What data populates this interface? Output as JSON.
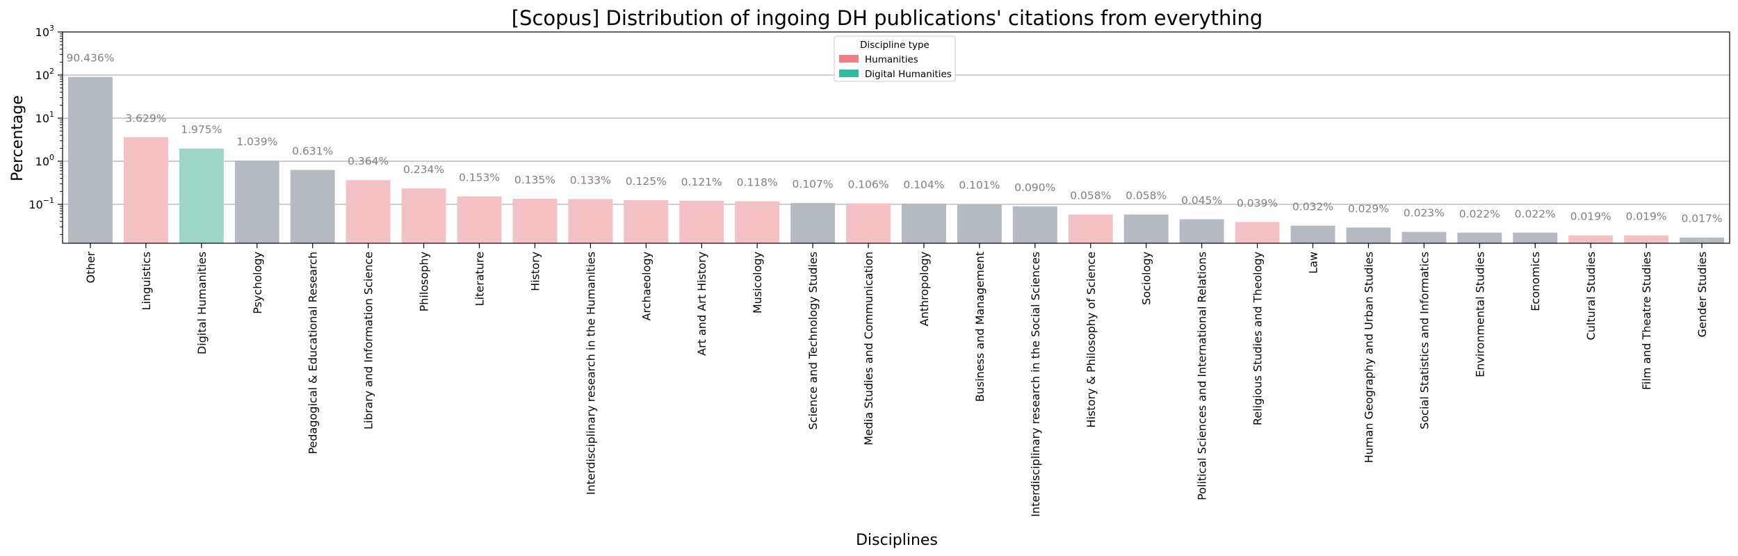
{
  "chart_data": {
    "type": "bar",
    "title": "[Scopus] Distribution of ingoing DH publications' citations from everything",
    "xlabel": "Disciplines",
    "ylabel": "Percentage",
    "yscale": "log",
    "ylim": [
      0.0125,
      1000
    ],
    "yticks": [
      {
        "value": 1000,
        "base": "10",
        "exp": "3"
      },
      {
        "value": 100,
        "base": "10",
        "exp": "2"
      },
      {
        "value": 10,
        "base": "10",
        "exp": "1"
      },
      {
        "value": 1,
        "base": "10",
        "exp": "0"
      },
      {
        "value": 0.1,
        "base": "10",
        "exp": "−1"
      }
    ],
    "grid": "horizontal",
    "legend": {
      "title": "Discipline type",
      "placement": "top-center",
      "entries": [
        {
          "label": "Humanities",
          "color": "#f07c85"
        },
        {
          "label": "Digital Humanities",
          "color": "#2fbc9c"
        }
      ]
    },
    "colors": {
      "other": "#b5bbc0",
      "humanities": "#f4c1c5",
      "digital_humanities": "#9dd6c7"
    },
    "categories": [
      "Other",
      "Linguistics",
      "Digital Humanities",
      "Psychology",
      "Pedagogical & Educational Research",
      "Library and Information Science",
      "Philosophy",
      "Literature",
      "History",
      "Interdisciplinary research in the Humanities",
      "Archaeology",
      "Art and Art History",
      "Musicology",
      "Science and Technology Studies",
      "Media Studies and Communication",
      "Anthropology",
      "Business and Management",
      "Interdisciplinary research in the Social Sciences",
      "History & Philosophy of Science",
      "Sociology",
      "Political Sciences and International Relations",
      "Religious Studies and Theology",
      "Law",
      "Human Geography and Urban Studies",
      "Social Statistics and Informatics",
      "Environmental Studies",
      "Economics",
      "Cultural Studies",
      "Film and Theatre Studies",
      "Gender Studies"
    ],
    "values": [
      90.436,
      3.629,
      1.975,
      1.039,
      0.631,
      0.364,
      0.234,
      0.153,
      0.135,
      0.133,
      0.125,
      0.121,
      0.118,
      0.107,
      0.106,
      0.104,
      0.101,
      0.09,
      0.058,
      0.058,
      0.045,
      0.039,
      0.032,
      0.029,
      0.023,
      0.022,
      0.022,
      0.019,
      0.019,
      0.017
    ],
    "value_labels": [
      "90.436%",
      "3.629%",
      "1.975%",
      "1.039%",
      "0.631%",
      "0.364%",
      "0.234%",
      "0.153%",
      "0.135%",
      "0.133%",
      "0.125%",
      "0.121%",
      "0.118%",
      "0.107%",
      "0.106%",
      "0.104%",
      "0.101%",
      "0.090%",
      "0.058%",
      "0.058%",
      "0.045%",
      "0.039%",
      "0.032%",
      "0.029%",
      "0.023%",
      "0.022%",
      "0.022%",
      "0.019%",
      "0.019%",
      "0.017%"
    ],
    "types": [
      "Other",
      "Humanities",
      "Digital Humanities",
      "Other",
      "Other",
      "Humanities",
      "Humanities",
      "Humanities",
      "Humanities",
      "Humanities",
      "Humanities",
      "Humanities",
      "Humanities",
      "Other",
      "Humanities",
      "Other",
      "Other",
      "Other",
      "Humanities",
      "Other",
      "Other",
      "Humanities",
      "Other",
      "Other",
      "Other",
      "Other",
      "Other",
      "Humanities",
      "Humanities",
      "Other"
    ]
  }
}
